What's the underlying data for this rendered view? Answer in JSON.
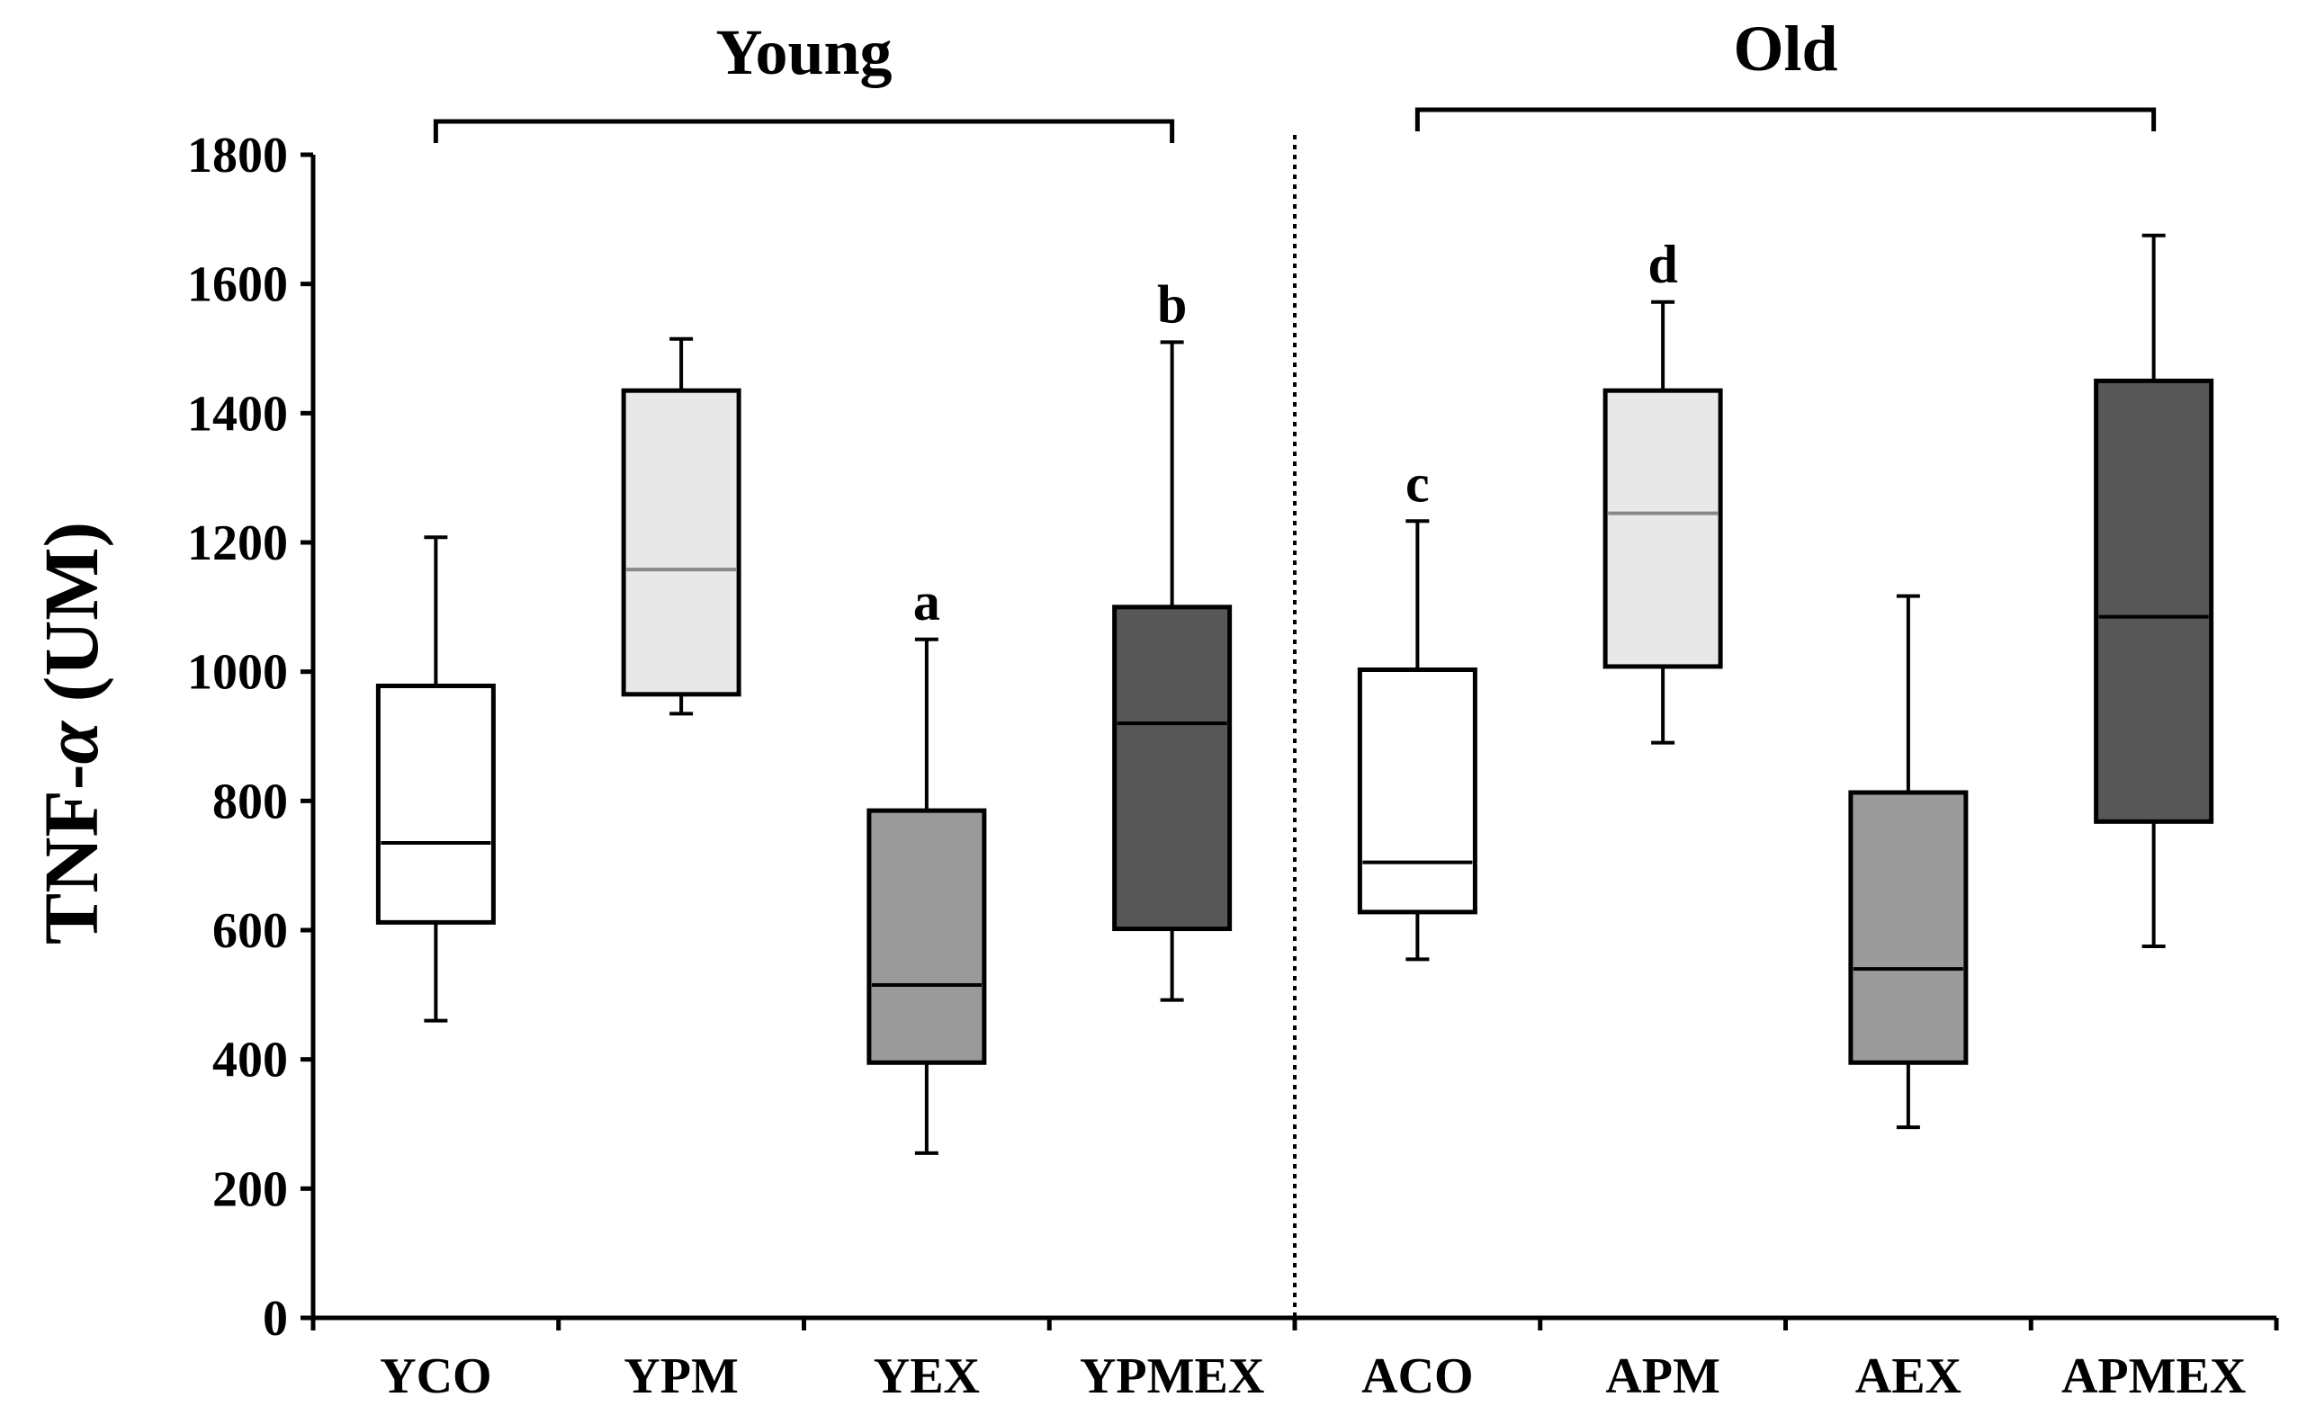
{
  "chart_data": {
    "type": "boxplot",
    "title": "",
    "xlabel": "",
    "ylabel_main": "TNF-",
    "ylabel_greek": "α",
    "ylabel_unit": " (UM)",
    "ylim": [
      0,
      1800
    ],
    "yticks": [
      0,
      200,
      400,
      600,
      800,
      1000,
      1200,
      1400,
      1600,
      1800
    ],
    "categories": [
      "YCO",
      "YPM",
      "YEX",
      "YPMEX",
      "ACO",
      "APM",
      "AEX",
      "APMEX"
    ],
    "groups": [
      {
        "name": "Young",
        "members": [
          "YCO",
          "YPM",
          "YEX",
          "YPMEX"
        ]
      },
      {
        "name": "Old",
        "members": [
          "ACO",
          "APM",
          "AEX",
          "APMEX"
        ]
      }
    ],
    "series": [
      {
        "name": "YCO",
        "min": 460,
        "q1": 612,
        "median": 735,
        "q3": 978,
        "max": 1208,
        "fill": "#ffffff",
        "median_color": "#000000",
        "annotation": ""
      },
      {
        "name": "YPM",
        "min": 935,
        "q1": 965,
        "median": 1158,
        "q3": 1435,
        "max": 1515,
        "fill": "#e8e8e8",
        "median_color": "#888888",
        "annotation": ""
      },
      {
        "name": "YEX",
        "min": 255,
        "q1": 395,
        "median": 515,
        "q3": 785,
        "max": 1050,
        "fill": "#9a9a9a",
        "median_color": "#000000",
        "annotation": "a"
      },
      {
        "name": "YPMEX",
        "min": 492,
        "q1": 602,
        "median": 920,
        "q3": 1100,
        "max": 1510,
        "fill": "#575757",
        "median_color": "#000000",
        "annotation": "b"
      },
      {
        "name": "ACO",
        "min": 555,
        "q1": 628,
        "median": 705,
        "q3": 1003,
        "max": 1233,
        "fill": "#ffffff",
        "median_color": "#000000",
        "annotation": "c"
      },
      {
        "name": "APM",
        "min": 890,
        "q1": 1008,
        "median": 1245,
        "q3": 1435,
        "max": 1572,
        "fill": "#e8e8e8",
        "median_color": "#888888",
        "annotation": "d"
      },
      {
        "name": "AEX",
        "min": 295,
        "q1": 395,
        "median": 540,
        "q3": 813,
        "max": 1117,
        "fill": "#9a9a9a",
        "median_color": "#000000",
        "annotation": ""
      },
      {
        "name": "APMEX",
        "min": 575,
        "q1": 768,
        "median": 1085,
        "q3": 1450,
        "max": 1675,
        "fill": "#575757",
        "median_color": "#000000",
        "annotation": ""
      }
    ],
    "grid": false,
    "divider": "dotted vertical line between YPMEX and ACO"
  }
}
